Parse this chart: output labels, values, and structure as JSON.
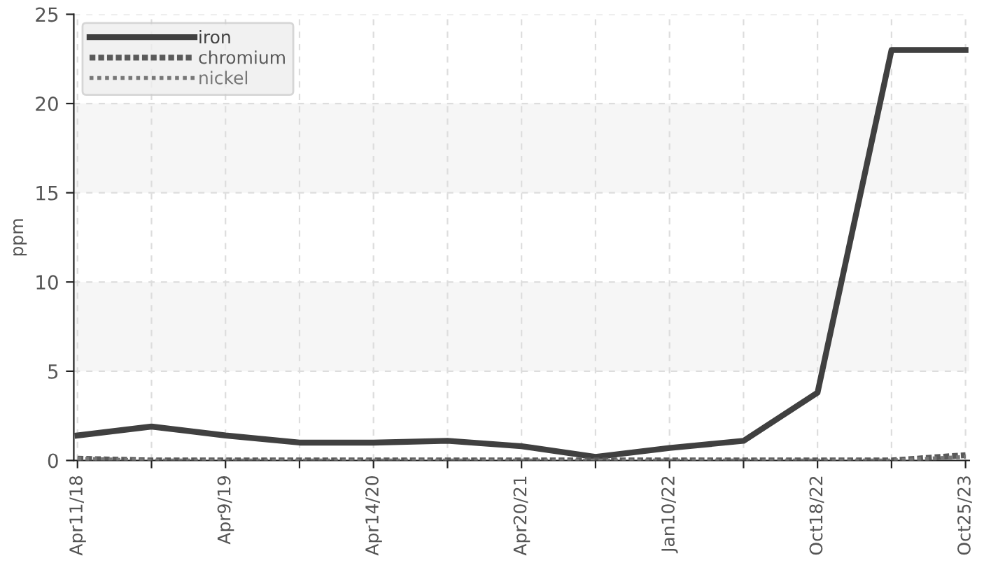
{
  "chart_data": {
    "type": "line",
    "ylabel": "ppm",
    "categories": [
      "Apr11/18",
      null,
      "Apr9/19",
      null,
      "Apr14/20",
      null,
      "Apr20/21",
      null,
      "Jan10/22",
      null,
      "Oct18/22",
      null,
      "Oct25/23"
    ],
    "series": [
      {
        "name": "iron",
        "color": "#404040",
        "line_style": "solid",
        "values": [
          1.4,
          1.9,
          1.4,
          1.0,
          1.0,
          1.1,
          0.8,
          0.2,
          0.7,
          1.1,
          3.8,
          23,
          23
        ]
      },
      {
        "name": "chromium",
        "color": "#5a5a5a",
        "line_style": "dashed",
        "values": [
          0.1,
          0,
          0,
          0,
          0,
          0,
          0,
          0,
          0,
          0,
          0,
          0,
          0.3
        ]
      },
      {
        "name": "nickel",
        "color": "#777777",
        "line_style": "dotted",
        "values": [
          0.1,
          0,
          0,
          0,
          0,
          0,
          0,
          0,
          0,
          0,
          0,
          0,
          0.2
        ]
      }
    ],
    "ylim": [
      0,
      25
    ],
    "yticks": [
      0,
      5,
      10,
      15,
      20,
      25
    ],
    "bands": [
      {
        "axis": "y",
        "from": 5,
        "to": 10,
        "color": "#f6f6f6"
      },
      {
        "axis": "y",
        "from": 15,
        "to": 20,
        "color": "#f6f6f6"
      }
    ],
    "grid": true,
    "legend": "top left",
    "marker": "none"
  }
}
